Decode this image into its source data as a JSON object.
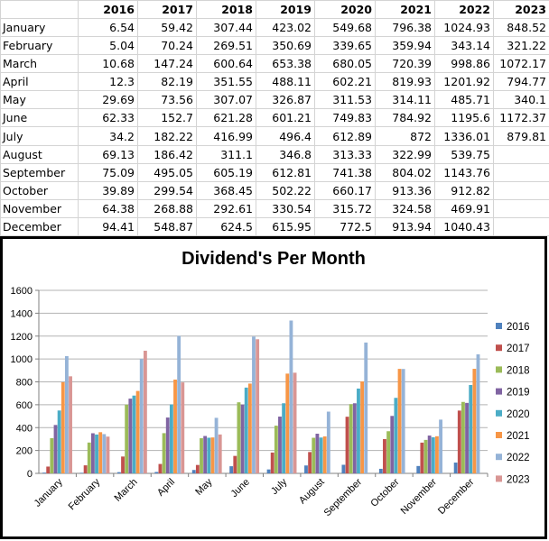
{
  "sheet": {
    "years": [
      "2016",
      "2017",
      "2018",
      "2019",
      "2020",
      "2021",
      "2022",
      "2023"
    ],
    "rows": [
      {
        "month": "January",
        "cells": [
          "6.54",
          "59.42",
          "307.44",
          "423.02",
          "549.68",
          "796.38",
          "1024.93",
          "848.52"
        ]
      },
      {
        "month": "February",
        "cells": [
          "5.04",
          "70.24",
          "269.51",
          "350.69",
          "339.65",
          "359.94",
          "343.14",
          "321.22"
        ]
      },
      {
        "month": "March",
        "cells": [
          "10.68",
          "147.24",
          "600.64",
          "653.38",
          "680.05",
          "720.39",
          "998.86",
          "1072.17"
        ]
      },
      {
        "month": "April",
        "cells": [
          "12.3",
          "82.19",
          "351.55",
          "488.11",
          "602.21",
          "819.93",
          "1201.92",
          "794.77"
        ]
      },
      {
        "month": "May",
        "cells": [
          "29.69",
          "73.56",
          "307.07",
          "326.87",
          "311.53",
          "314.11",
          "485.71",
          "340.1"
        ]
      },
      {
        "month": "June",
        "cells": [
          "62.33",
          "152.7",
          "621.28",
          "601.21",
          "749.83",
          "784.92",
          "1195.6",
          "1172.37"
        ]
      },
      {
        "month": "July",
        "cells": [
          "34.2",
          "182.22",
          "416.99",
          "496.4",
          "612.89",
          "872",
          "1336.01",
          "879.81"
        ]
      },
      {
        "month": "August",
        "cells": [
          "69.13",
          "186.42",
          "311.1",
          "346.8",
          "313.33",
          "322.99",
          "539.75",
          ""
        ]
      },
      {
        "month": "September",
        "cells": [
          "75.09",
          "495.05",
          "605.19",
          "612.81",
          "741.38",
          "804.02",
          "1143.76",
          ""
        ]
      },
      {
        "month": "October",
        "cells": [
          "39.89",
          "299.54",
          "368.45",
          "502.22",
          "660.17",
          "913.36",
          "912.82",
          ""
        ]
      },
      {
        "month": "November",
        "cells": [
          "64.38",
          "268.88",
          "292.61",
          "330.54",
          "315.72",
          "324.58",
          "469.91",
          ""
        ]
      },
      {
        "month": "December",
        "cells": [
          "94.41",
          "548.87",
          "624.5",
          "615.95",
          "772.5",
          "913.94",
          "1040.43",
          ""
        ]
      }
    ]
  },
  "chart_data": {
    "type": "bar",
    "title": "Dividend's Per Month",
    "categories": [
      "January",
      "February",
      "March",
      "April",
      "May",
      "June",
      "July",
      "August",
      "September",
      "October",
      "November",
      "December"
    ],
    "ylim": [
      0,
      1600
    ],
    "yticks": [
      0,
      200,
      400,
      600,
      800,
      1000,
      1200,
      1400,
      1600
    ],
    "grid": true,
    "legend_position": "right",
    "series": [
      {
        "name": "2016",
        "color": "#4f81bd",
        "values": [
          6.54,
          5.04,
          10.68,
          12.3,
          29.69,
          62.33,
          34.2,
          69.13,
          75.09,
          39.89,
          64.38,
          94.41
        ]
      },
      {
        "name": "2017",
        "color": "#c0504d",
        "values": [
          59.42,
          70.24,
          147.24,
          82.19,
          73.56,
          152.7,
          182.22,
          186.42,
          495.05,
          299.54,
          268.88,
          548.87
        ]
      },
      {
        "name": "2018",
        "color": "#9bbb59",
        "values": [
          307.44,
          269.51,
          600.64,
          351.55,
          307.07,
          621.28,
          416.99,
          311.1,
          605.19,
          368.45,
          292.61,
          624.5
        ]
      },
      {
        "name": "2019",
        "color": "#8064a2",
        "values": [
          423.02,
          350.69,
          653.38,
          488.11,
          326.87,
          601.21,
          496.4,
          346.8,
          612.81,
          502.22,
          330.54,
          615.95
        ]
      },
      {
        "name": "2020",
        "color": "#4bacc6",
        "values": [
          549.68,
          339.65,
          680.05,
          602.21,
          311.53,
          749.83,
          612.89,
          313.33,
          741.38,
          660.17,
          315.72,
          772.5
        ]
      },
      {
        "name": "2021",
        "color": "#f79646",
        "values": [
          796.38,
          359.94,
          720.39,
          819.93,
          314.11,
          784.92,
          872,
          322.99,
          804.02,
          913.36,
          324.58,
          913.94
        ]
      },
      {
        "name": "2022",
        "color": "#95b3d7",
        "values": [
          1024.93,
          343.14,
          998.86,
          1201.92,
          485.71,
          1195.6,
          1336.01,
          539.75,
          1143.76,
          912.82,
          469.91,
          1040.43
        ]
      },
      {
        "name": "2023",
        "color": "#d99694",
        "values": [
          848.52,
          321.22,
          1072.17,
          794.77,
          340.1,
          1172.37,
          879.81,
          null,
          null,
          null,
          null,
          null
        ]
      }
    ]
  }
}
